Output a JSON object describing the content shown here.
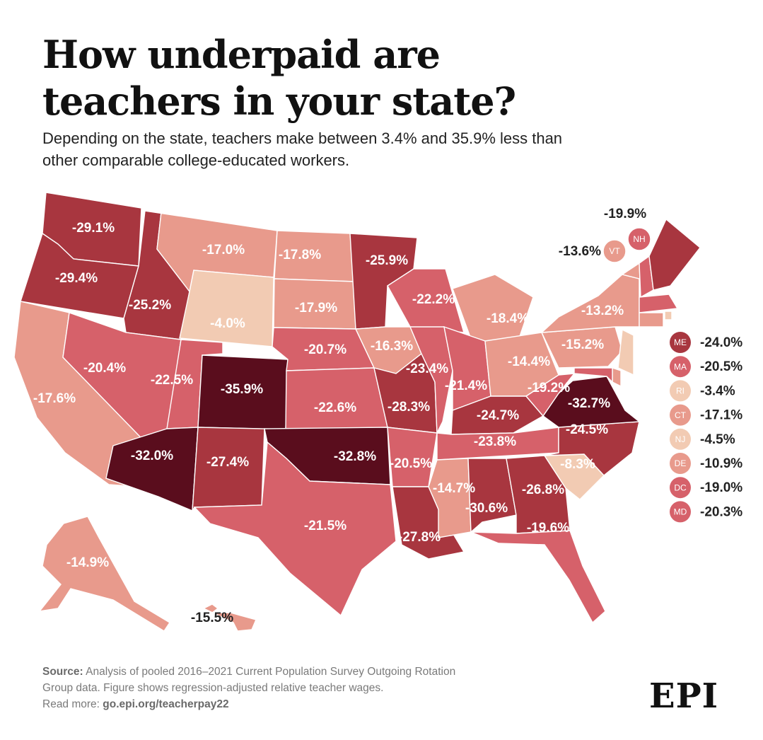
{
  "title": {
    "line1": "How underpaid are",
    "line2": "teachers in your state?"
  },
  "subtitle": {
    "line1": "Depending on the state, teachers make between 3.4% and 35.9% less than",
    "line2": "other comparable college-educated workers."
  },
  "color_scale": {
    "lightest": "#f2cbb3",
    "light": "#e89a8c",
    "mid": "#d6616a",
    "dark": "#a8363f",
    "darkest": "#5a0d1d"
  },
  "states": [
    {
      "id": "WA",
      "label": "-29.1%",
      "value": -29.1
    },
    {
      "id": "OR",
      "label": "-29.4%",
      "value": -29.4
    },
    {
      "id": "CA",
      "label": "-17.6%",
      "value": -17.6
    },
    {
      "id": "ID",
      "label": "-25.2%",
      "value": -25.2
    },
    {
      "id": "NV",
      "label": "-20.4%",
      "value": -20.4
    },
    {
      "id": "MT",
      "label": "-17.0%",
      "value": -17.0
    },
    {
      "id": "WY",
      "label": "-4.0%",
      "value": -4.0
    },
    {
      "id": "UT",
      "label": "-22.5%",
      "value": -22.5
    },
    {
      "id": "CO",
      "label": "-35.9%",
      "value": -35.9
    },
    {
      "id": "AZ",
      "label": "-32.0%",
      "value": -32.0
    },
    {
      "id": "NM",
      "label": "-27.4%",
      "value": -27.4
    },
    {
      "id": "ND",
      "label": "-17.8%",
      "value": -17.8
    },
    {
      "id": "SD",
      "label": "-17.9%",
      "value": -17.9
    },
    {
      "id": "NE",
      "label": "-20.7%",
      "value": -20.7
    },
    {
      "id": "KS",
      "label": "-22.6%",
      "value": -22.6
    },
    {
      "id": "OK",
      "label": "-32.8%",
      "value": -32.8
    },
    {
      "id": "TX",
      "label": "-21.5%",
      "value": -21.5
    },
    {
      "id": "MN",
      "label": "-25.9%",
      "value": -25.9
    },
    {
      "id": "IA",
      "label": "-16.3%",
      "value": -16.3
    },
    {
      "id": "MO",
      "label": "-28.3%",
      "value": -28.3
    },
    {
      "id": "AR",
      "label": "-20.5%",
      "value": -20.5
    },
    {
      "id": "LA",
      "label": "-27.8%",
      "value": -27.8
    },
    {
      "id": "WI",
      "label": "-22.2%",
      "value": -22.2
    },
    {
      "id": "IL",
      "label": "-23.4%",
      "value": -23.4
    },
    {
      "id": "MI",
      "label": "-18.4%",
      "value": -18.4
    },
    {
      "id": "IN",
      "label": "-21.4%",
      "value": -21.4
    },
    {
      "id": "OH",
      "label": "-14.4%",
      "value": -14.4
    },
    {
      "id": "KY",
      "label": "-24.7%",
      "value": -24.7
    },
    {
      "id": "TN",
      "label": "-23.8%",
      "value": -23.8
    },
    {
      "id": "MS",
      "label": "-14.7%",
      "value": -14.7
    },
    {
      "id": "AL",
      "label": "-30.6%",
      "value": -30.6
    },
    {
      "id": "GA",
      "label": "-26.8%",
      "value": -26.8
    },
    {
      "id": "FL",
      "label": "-19.6%",
      "value": -19.6
    },
    {
      "id": "SC",
      "label": "-8.3%",
      "value": -8.3
    },
    {
      "id": "NC",
      "label": "-24.5%",
      "value": -24.5
    },
    {
      "id": "VA",
      "label": "-32.7%",
      "value": -32.7
    },
    {
      "id": "WV",
      "label": "-19.2%",
      "value": -19.2
    },
    {
      "id": "PA",
      "label": "-15.2%",
      "value": -15.2
    },
    {
      "id": "NY",
      "label": "-13.2%",
      "value": -13.2
    },
    {
      "id": "AK",
      "label": "-14.9%",
      "value": -14.9
    },
    {
      "id": "HI",
      "label": "-15.5%",
      "value": -15.5
    }
  ],
  "northeast_callouts": [
    {
      "abbr": "NH",
      "label": "-19.9%",
      "value": -19.9
    },
    {
      "abbr": "VT",
      "label": "-13.6%",
      "value": -13.6
    }
  ],
  "legend": [
    {
      "abbr": "ME",
      "label": "-24.0%",
      "value": -24.0
    },
    {
      "abbr": "MA",
      "label": "-20.5%",
      "value": -20.5
    },
    {
      "abbr": "RI",
      "label": "-3.4%",
      "value": -3.4
    },
    {
      "abbr": "CT",
      "label": "-17.1%",
      "value": -17.1
    },
    {
      "abbr": "NJ",
      "label": "-4.5%",
      "value": -4.5
    },
    {
      "abbr": "DE",
      "label": "-10.9%",
      "value": -10.9
    },
    {
      "abbr": "DC",
      "label": "-19.0%",
      "value": -19.0
    },
    {
      "abbr": "MD",
      "label": "-20.3%",
      "value": -20.3
    }
  ],
  "footer": {
    "source_label": "Source:",
    "source_text": " Analysis of pooled 2016–2021 Current Population Survey Outgoing Rotation",
    "line2": "Group data. Figure shows regression-adjusted relative teacher wages.",
    "read_more": "Read more: ",
    "link": "go.epi.org/teacherpay22"
  },
  "logo": "EPI"
}
